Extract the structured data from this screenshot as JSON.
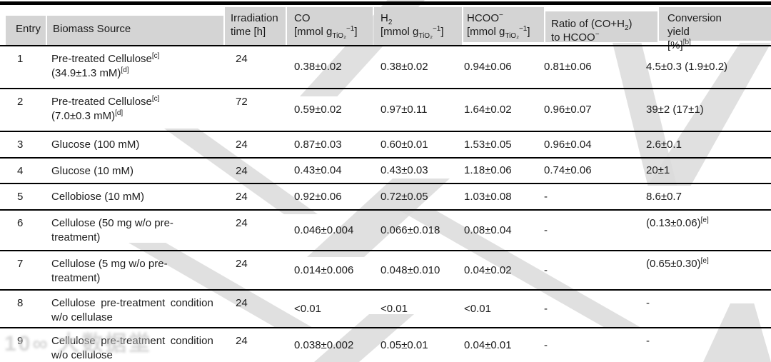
{
  "page": {
    "background": "#ffffff",
    "header_gray": "#d4d4d4",
    "rule_color": "#000000",
    "watermark_gray": "#dadada"
  },
  "watermark": {
    "logo": "10∞",
    "brand": "大数据堂"
  },
  "table": {
    "header": {
      "entry": "Entry",
      "biomass": "Biomass Source",
      "time": "Irradiation\ntime [h]",
      "co": "CO\n[mmol g_{TiO₂}^{−1}]",
      "h2": "H_{2}\n[mmol g_{TiO₂}^{−1}]",
      "hcoo": "HCOO^{−}\n[mmol g_{TiO₂}^{−1}]",
      "ratio": "Ratio of (CO+H_{2})\nto HCOO^{−}",
      "conversion": "Conversion  yield\n[%]^{[b]}"
    },
    "rows": [
      {
        "entry": "1",
        "biomass": "Pre-treated Cellulose^{[c]}\n(34.9±1.3 mM)^{[d]}",
        "time": "24",
        "co": "0.38±0.02",
        "h2": "0.38±0.02",
        "hcoo": "0.94±0.06",
        "ratio": "0.81±0.06",
        "conversion": "4.5±0.3 (1.9±0.2)"
      },
      {
        "entry": "2",
        "biomass": "Pre-treated Cellulose^{[c]}\n(7.0±0.3 mM)^{[d]}",
        "time": "72",
        "co": "0.59±0.02",
        "h2": "0.97±0.11",
        "hcoo": "1.64±0.02",
        "ratio": "0.96±0.07",
        "conversion": "39±2 (17±1)"
      },
      {
        "entry": "3",
        "biomass": "Glucose (100 mM)",
        "time": "24",
        "co": "0.87±0.03",
        "h2": "0.60±0.01",
        "hcoo": "1.53±0.05",
        "ratio": "0.96±0.04",
        "conversion": "2.6±0.1"
      },
      {
        "entry": "4",
        "biomass": "Glucose (10 mM)",
        "time": "24",
        "co": "0.43±0.04",
        "h2": "0.43±0.03",
        "hcoo": "1.18±0.06",
        "ratio": "0.74±0.06",
        "conversion": "20±1"
      },
      {
        "entry": "5",
        "biomass": "Cellobiose (10 mM)",
        "time": "24",
        "co": "0.92±0.06",
        "h2": "0.72±0.05",
        "hcoo": "1.03±0.08",
        "ratio": "-",
        "conversion": "8.6±0.7"
      },
      {
        "entry": "6",
        "biomass": "Cellulose (50 mg w/o pre-\ntreatment)",
        "time": "24",
        "co": "0.046±0.004",
        "h2": "0.066±0.018",
        "hcoo": "0.08±0.04",
        "ratio": "-",
        "conversion": "(0.13±0.06)^{[e]}"
      },
      {
        "entry": "7",
        "biomass": "Cellulose (5 mg w/o pre-\ntreatment)",
        "time": "24",
        "co": "0.014±0.006",
        "h2": "0.048±0.010",
        "hcoo": "0.04±0.02",
        "ratio": "-",
        "conversion": "(0.65±0.30)^{[e]}"
      },
      {
        "entry": "8",
        "biomass": "Cellulose pre-treatment condition\nw/o cellulase",
        "time": "24",
        "co": "<0.01",
        "h2": "<0.01",
        "hcoo": "<0.01",
        "ratio": "-",
        "conversion": "-"
      },
      {
        "entry": "9",
        "biomass": "Cellulose pre-treatment condition\nw/o cellulose",
        "time": "24",
        "co": "0.038±0.002",
        "h2": "0.05±0.01",
        "hcoo": "0.04±0.01",
        "ratio": "-",
        "conversion": "-"
      }
    ]
  }
}
